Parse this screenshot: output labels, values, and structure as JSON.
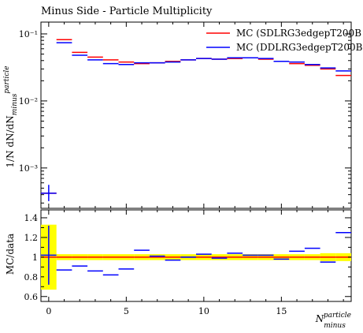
{
  "chart_data": [
    {
      "type": "line",
      "title": "Minus Side - Particle Multiplicity",
      "xlabel": "N_minus^particle",
      "ylabel": "1/N dN/dN_minus^particle",
      "yscale": "log",
      "xlim": [
        -0.5,
        19.5
      ],
      "ylim": [
        0.00025,
        0.15
      ],
      "ytick_labels": [
        {
          "value": 0.1,
          "label": "10⁻¹"
        },
        {
          "value": 0.01,
          "label": "10⁻²"
        },
        {
          "value": 0.001,
          "label": "10⁻³"
        }
      ],
      "legend_position": "top-right",
      "series": [
        {
          "name": "MC (SDLRG3edgepT200B",
          "color": "#ff0000",
          "x": [
            0,
            1,
            2,
            3,
            4,
            5,
            6,
            7,
            8,
            9,
            10,
            11,
            12,
            13,
            14,
            15,
            16,
            17,
            18,
            19
          ],
          "values": [
            0.00042,
            0.082,
            0.053,
            0.045,
            0.041,
            0.038,
            0.036,
            0.037,
            0.039,
            0.041,
            0.043,
            0.042,
            0.043,
            0.044,
            0.042,
            0.039,
            0.036,
            0.034,
            0.03,
            0.024
          ]
        },
        {
          "name": "MC (DDLRG3edgepT200B",
          "color": "#0000ff",
          "x": [
            0,
            1,
            2,
            3,
            4,
            5,
            6,
            7,
            8,
            9,
            10,
            11,
            12,
            13,
            14,
            15,
            16,
            17,
            18,
            19
          ],
          "values": [
            0.00042,
            0.074,
            0.048,
            0.041,
            0.036,
            0.035,
            0.037,
            0.037,
            0.038,
            0.041,
            0.043,
            0.042,
            0.044,
            0.044,
            0.043,
            0.039,
            0.038,
            0.035,
            0.031,
            0.028
          ]
        }
      ],
      "y_error_bars": [
        0.0,
        0.0,
        0.0,
        0.0,
        0.0,
        0.0,
        0.0,
        0.0,
        0.0,
        0.0,
        0.0,
        0.0,
        0.0,
        0.0,
        0.0,
        0.0,
        0.0,
        0.0,
        0.0,
        0.0
      ]
    },
    {
      "type": "line",
      "ylabel": "MC/data",
      "xlabel": "N_minus^particle",
      "xlim": [
        -0.5,
        19.5
      ],
      "ylim": [
        0.55,
        1.48
      ],
      "x_tick_labels": [
        {
          "value": 0,
          "label": "0"
        },
        {
          "value": 5,
          "label": "5"
        },
        {
          "value": 10,
          "label": "10"
        },
        {
          "value": 15,
          "label": "15"
        }
      ],
      "y_tick_labels": [
        {
          "value": 0.6,
          "label": "0.6"
        },
        {
          "value": 0.8,
          "label": "0.8"
        },
        {
          "value": 1.0,
          "label": "1"
        },
        {
          "value": 1.2,
          "label": "1.2"
        },
        {
          "value": 1.4,
          "label": "1.4"
        }
      ],
      "band": {
        "color": "#ffff00",
        "x": [
          0,
          1,
          2,
          3,
          4,
          5,
          6,
          7,
          8,
          9,
          10,
          11,
          12,
          13,
          14,
          15,
          16,
          17,
          18,
          19
        ],
        "low": [
          0.67,
          0.97,
          0.97,
          0.97,
          0.97,
          0.97,
          0.97,
          0.97,
          0.97,
          0.97,
          0.97,
          0.97,
          0.97,
          0.97,
          0.97,
          0.97,
          0.97,
          0.97,
          0.96,
          0.96
        ],
        "high": [
          1.33,
          1.03,
          1.03,
          1.03,
          1.03,
          1.03,
          1.03,
          1.03,
          1.03,
          1.03,
          1.03,
          1.03,
          1.03,
          1.03,
          1.03,
          1.03,
          1.03,
          1.03,
          1.04,
          1.04
        ]
      },
      "series": [
        {
          "name": "MC (SDLRG3edgepT200B",
          "color": "#ff0000",
          "x": [
            0,
            1,
            2,
            3,
            4,
            5,
            6,
            7,
            8,
            9,
            10,
            11,
            12,
            13,
            14,
            15,
            16,
            17,
            18,
            19
          ],
          "values": [
            1.0,
            1.0,
            1.0,
            1.0,
            1.0,
            1.0,
            1.0,
            1.0,
            1.0,
            1.0,
            1.0,
            1.0,
            1.0,
            1.0,
            1.0,
            1.0,
            1.0,
            1.0,
            1.0,
            1.0
          ]
        },
        {
          "name": "MC (DDLRG3edgepT200B",
          "color": "#0000ff",
          "x": [
            0,
            1,
            2,
            3,
            4,
            5,
            6,
            7,
            8,
            9,
            10,
            11,
            12,
            13,
            14,
            15,
            16,
            17,
            18,
            19
          ],
          "values": [
            1.02,
            0.87,
            0.91,
            0.86,
            0.82,
            0.88,
            1.07,
            1.01,
            0.97,
            1.0,
            1.03,
            0.99,
            1.04,
            1.02,
            1.02,
            0.98,
            1.06,
            1.09,
            0.95,
            1.25
          ],
          "yerr": [
            0.3,
            0,
            0,
            0,
            0,
            0,
            0,
            0,
            0,
            0,
            0,
            0,
            0,
            0,
            0,
            0,
            0,
            0,
            0,
            0
          ]
        }
      ]
    }
  ]
}
